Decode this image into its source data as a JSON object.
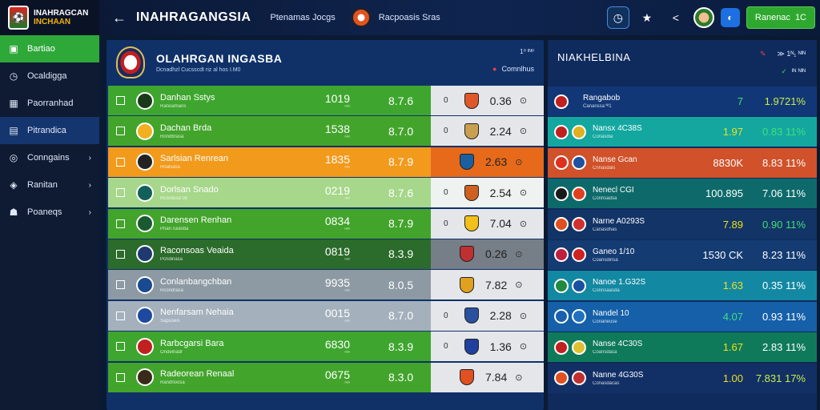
{
  "brand": {
    "line1": "INAHRAGCAN",
    "line2": "INCHAAN"
  },
  "header": {
    "title": "INAHRAGANGSIA",
    "text1": "Ptenamas Jocgs",
    "text2": "Racpoasis Sras",
    "button_label": "Ranenac",
    "button_icon": "1C"
  },
  "sidebar": {
    "items": [
      {
        "label": "Bartiao",
        "icon": "board-icon"
      },
      {
        "label": "Ocaldigga",
        "icon": "clock-icon"
      },
      {
        "label": "Paorranhad",
        "icon": "grid-icon"
      },
      {
        "label": "Pitrandica",
        "icon": "building-icon"
      },
      {
        "label": "Conngains",
        "icon": "shield-icon",
        "chevron": "›"
      },
      {
        "label": "Ranitan",
        "icon": "target-icon",
        "chevron": "›"
      },
      {
        "label": "Poaneqs",
        "icon": "people-icon",
        "chevron": "›"
      }
    ]
  },
  "left_panel": {
    "title": "OLAHRGAN INGASBA",
    "subtitle": "Dcnadhzl Cucsscdt riz al hos   I.M0",
    "corner_small": "1⁰ ᴵᴺ⁰",
    "link": "Comnlhus",
    "rows": [
      {
        "name": "Danhan Sstys",
        "meta": "Ranoamans",
        "stat": "1019",
        "stat_sub": "ⁿᵉⁿ",
        "val": "8.7.6",
        "odds_n": "0",
        "odds": "0.36",
        "cg": "⊙"
      },
      {
        "name": "Dachan Brda",
        "meta": "Rondbrasa",
        "stat": "1538",
        "stat_sub": "ⁿᵉⁿ",
        "val": "8.7.0",
        "odds_n": "0",
        "odds": "2.24",
        "cg": "⊙"
      },
      {
        "name": "Sarlsian Renrean",
        "meta": "Rnalsasa",
        "stat": "1835",
        "stat_sub": "ⁿᵉⁿ",
        "val": "8.7.9",
        "odds_n": "",
        "odds": "2.63",
        "cg": "⊙"
      },
      {
        "name": "Dorlsan Snado",
        "meta": "Rcordosa   09",
        "stat": "0219",
        "stat_sub": "ⁿᵉⁿ",
        "val": "8.7.6",
        "odds_n": "0",
        "odds": "2.54",
        "cg": "⊙"
      },
      {
        "name": "Darensen Renhan",
        "meta": "Pnan ruiasba",
        "stat": "0834",
        "stat_sub": "ⁿᵉⁿ",
        "val": "8.7.9",
        "odds_n": "0",
        "odds": "7.04",
        "cg": "⊙"
      },
      {
        "name": "Raconsoas Veaida",
        "meta": "Pcndinasa",
        "stat": "0819",
        "stat_sub": "ⁿᵉⁿ",
        "val": "8.3.9",
        "odds_n": "",
        "odds": "0.26",
        "cg": "⊙"
      },
      {
        "name": "Conlanbangchban",
        "meta": "Rcondrasa",
        "stat": "9935",
        "stat_sub": "ⁿᵉⁿ",
        "val": "8.0.5",
        "odds_n": "",
        "odds": "7.82",
        "cg": "⊙"
      },
      {
        "name": "Nenfarsam Nehaia",
        "meta": "Sapsoeis",
        "stat": "0015",
        "stat_sub": "ⁿᵉⁿ",
        "val": "8.7.0",
        "odds_n": "0",
        "odds": "2.28",
        "cg": "⊙"
      },
      {
        "name": "Rarbcgarsi Bara",
        "meta": "Ondelnadr",
        "stat": "6830",
        "stat_sub": "ⁿᵉⁿ",
        "val": "8.3.9",
        "odds_n": "0",
        "odds": "1.36",
        "cg": "⊙"
      },
      {
        "name": "Radeorean Renaal",
        "meta": "Randnoosa",
        "stat": "0675",
        "stat_sub": "ⁿᵉⁿ",
        "val": "8.3.0",
        "odds_n": "",
        "odds": "7.84",
        "cg": "⊙"
      }
    ]
  },
  "right_panel": {
    "title": "NIAKHELBINA",
    "ctrl1": "≫ 1ᴺ₁ ᴺᴵᴺ",
    "ctrl2": "ᴵᴺ ᴺᴵᴺ",
    "rows": [
      {
        "name": "Rangabob",
        "meta": "Cananssa  ᴺᴵ1",
        "val": "7",
        "val_color": "c-grn",
        "pct": "1.9721%",
        "pct_color": "c-lime"
      },
      {
        "name": "Nansx 4C38S",
        "meta": "Conasdia",
        "val": "1.97",
        "val_color": "c-yel",
        "pct": "0.83 11%",
        "pct_color": "c-grn"
      },
      {
        "name": "Nanse Gcan",
        "meta": "Cnnasdals",
        "val": "8830K",
        "val_color": "c-wht",
        "pct": "8.83 11%",
        "pct_color": "c-wht"
      },
      {
        "name": "Nenecl CGI",
        "meta": "Connsadsa",
        "val": "100.895",
        "val_color": "c-wht",
        "pct": "7.06 11%",
        "pct_color": "c-wht"
      },
      {
        "name": "Narne A0293S",
        "meta": "Canasdhas",
        "val": "7.89",
        "val_color": "c-yel",
        "pct": "0.90 11%",
        "pct_color": "c-grn"
      },
      {
        "name": "Ganeo 1/10",
        "meta": "Coansdinsa",
        "val": "1530 CK",
        "val_color": "c-wht",
        "pct": "8.23 11%",
        "pct_color": "c-wht"
      },
      {
        "name": "Nanoe 1.G32S",
        "meta": "Connsaasda",
        "val": "1.63",
        "val_color": "c-yel",
        "pct": "0.35 11%",
        "pct_color": "c-wht"
      },
      {
        "name": "Nandel 10",
        "meta": "Conaneuse",
        "val": "4.07",
        "val_color": "c-grn",
        "pct": "0.93 11%",
        "pct_color": "c-wht"
      },
      {
        "name": "Nanse 4C30S",
        "meta": "Coansdaca",
        "val": "1.67",
        "val_color": "c-yel",
        "pct": "2.83 11%",
        "pct_color": "c-wht"
      },
      {
        "name": "Nanne 4G30S",
        "meta": "Conasdacas",
        "val": "1.00",
        "val_color": "c-yel",
        "pct": "7.831 17%",
        "pct_color": "c-lime"
      }
    ]
  }
}
